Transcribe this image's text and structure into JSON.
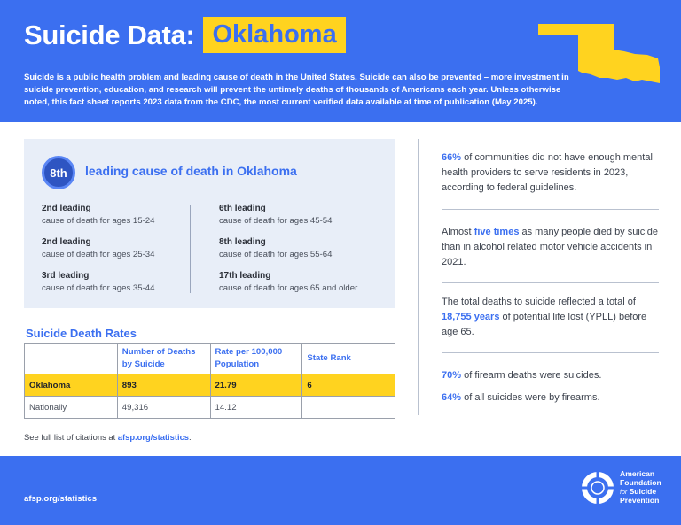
{
  "header": {
    "title": "Suicide Data:",
    "state": "Oklahoma",
    "intro": "Suicide is a public health problem and leading cause of death in the United States. Suicide can also be prevented – more investment in suicide prevention, education, and research will prevent the untimely deaths of thousands of Americans each year. Unless otherwise noted, this fact sheet reports 2023 data from the CDC, the most current verified data available at time of publication (May 2025)."
  },
  "ranking": {
    "badge": "8th",
    "title": "leading cause of death in Oklahoma",
    "left": [
      {
        "rank": "2nd leading",
        "desc": "cause of death for ages 15-24"
      },
      {
        "rank": "2nd leading",
        "desc": "cause of death for ages 25-34"
      },
      {
        "rank": "3rd leading",
        "desc": "cause of death for ages 35-44"
      }
    ],
    "right": [
      {
        "rank": "6th leading",
        "desc": "cause of death for ages 45-54"
      },
      {
        "rank": "8th leading",
        "desc": "cause of death for ages 55-64"
      },
      {
        "rank": "17th leading",
        "desc": "cause of death for ages 65 and older"
      }
    ]
  },
  "rates": {
    "title": "Suicide Death Rates",
    "headers": [
      "",
      "Number of Deaths by Suicide",
      "Rate per 100,000 Population",
      "State Rank"
    ],
    "rows": [
      [
        "Oklahoma",
        "893",
        "21.79",
        "6"
      ],
      [
        "Nationally",
        "49,316",
        "14.12",
        ""
      ]
    ]
  },
  "citation": {
    "prefix": "See full list of citations at ",
    "link": "afsp.org/statistics",
    "suffix": "."
  },
  "stats": [
    {
      "highlight": "66%",
      "before": "",
      "after": " of communities did not have enough mental health providers to serve residents in 2023, according to federal guidelines."
    },
    {
      "highlight": "five times",
      "before": "Almost ",
      "after": " as many people died by suicide than in alcohol related motor vehicle accidents in 2021."
    },
    {
      "highlight": "18,755 years",
      "before": "The total deaths to suicide reflected a total of ",
      "after": " of potential life lost (YPLL) before age 65."
    },
    {
      "highlight": "70%",
      "before": "",
      "after": " of firearm deaths were suicides."
    },
    {
      "highlight": "64%",
      "before": "",
      "after": " of all suicides were by firearms."
    }
  ],
  "footer": {
    "url": "afsp.org/statistics",
    "org_line1": "American",
    "org_line2": "Foundation",
    "org_for": "for",
    "org_line3": "Suicide",
    "org_line4": "Prevention"
  },
  "colors": {
    "brand_blue": "#3b6ff0",
    "highlight_yellow": "#ffd31f",
    "card_gray": "#e8eef8"
  },
  "icons": {
    "state_map": "oklahoma-map-icon",
    "logo": "afsp-lifesaver-logo-icon"
  }
}
